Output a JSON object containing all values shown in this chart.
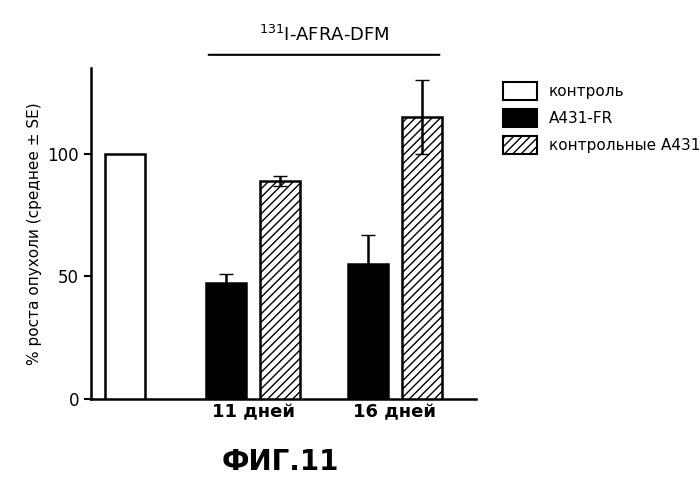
{
  "fig_label": "ФИГ.11",
  "ylabel": "% роста опухоли (среднее ± SE)",
  "groups": [
    "11 дней",
    "16 дней"
  ],
  "legend_labels": [
    "контроль",
    "A431-FR",
    "контрольные A431"
  ],
  "bar_values": {
    "control": 100,
    "fr_11": 47,
    "k_11": 89,
    "fr_16": 55,
    "k_16": 115
  },
  "bar_errors": {
    "control": 0,
    "fr_11": 4,
    "k_11": 2,
    "fr_16": 12,
    "k_16": 15
  },
  "ylim": [
    0,
    135
  ],
  "yticks": [
    0,
    50,
    100
  ],
  "background": "#ffffff",
  "title_text": "$^{131}$I-AFRA-DFM"
}
